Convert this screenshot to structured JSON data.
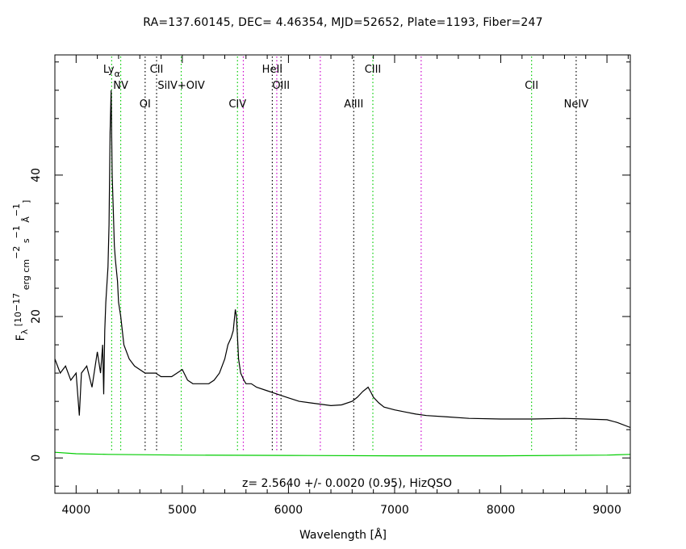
{
  "chart_data": {
    "type": "line",
    "title": "RA=137.60145, DEC= 4.46354, MJD=52652, Plate=1193, Fiber=247",
    "xlabel": "Wavelength [Å]",
    "ylabel_parts": [
      "F",
      "λ",
      " [10",
      "−17",
      " erg cm",
      "−2",
      " s",
      "−1",
      " Å",
      "−1",
      "]"
    ],
    "xlim": [
      3800,
      9220
    ],
    "ylim": [
      -5,
      57
    ],
    "x_ticks": [
      4000,
      5000,
      6000,
      7000,
      8000,
      9000
    ],
    "y_ticks": [
      0,
      20,
      40
    ],
    "annotation": "z= 2.5640 +/- 0.0020 (0.95), HizQSO",
    "colors": {
      "flux": "#000000",
      "error": "#00cc00",
      "emission": "#00cc00",
      "absorption": "#000000",
      "sky": "#cc00cc"
    },
    "series": [
      {
        "role": "flux",
        "x": [
          3800,
          3850,
          3900,
          3950,
          4000,
          4030,
          4050,
          4100,
          4150,
          4200,
          4230,
          4250,
          4260,
          4270,
          4280,
          4300,
          4310,
          4320,
          4330,
          4340,
          4350,
          4360,
          4370,
          4390,
          4400,
          4420,
          4450,
          4500,
          4550,
          4600,
          4650,
          4700,
          4750,
          4800,
          4850,
          4900,
          4950,
          5000,
          5050,
          5100,
          5150,
          5200,
          5250,
          5300,
          5350,
          5400,
          5430,
          5460,
          5480,
          5500,
          5510,
          5520,
          5530,
          5550,
          5580,
          5600,
          5650,
          5700,
          5800,
          5900,
          6000,
          6100,
          6200,
          6300,
          6400,
          6500,
          6600,
          6650,
          6700,
          6750,
          6780,
          6800,
          6850,
          6900,
          7000,
          7100,
          7200,
          7300,
          7500,
          7700,
          8000,
          8300,
          8600,
          8800,
          9000,
          9100,
          9220
        ],
        "y": [
          14,
          12,
          13,
          11,
          12,
          6,
          12,
          13,
          10,
          15,
          12,
          16,
          9,
          18,
          22,
          27,
          33,
          46,
          52,
          40,
          35,
          30,
          28,
          25,
          22,
          20,
          16,
          14,
          13,
          12.5,
          12,
          12,
          12,
          11.5,
          11.5,
          11.5,
          12,
          12.5,
          11,
          10.5,
          10.5,
          10.5,
          10.5,
          11,
          12,
          14,
          16,
          17,
          18,
          21,
          20,
          17,
          14,
          12,
          11,
          10.5,
          10.5,
          10,
          9.5,
          9,
          8.5,
          8,
          7.8,
          7.6,
          7.4,
          7.5,
          8,
          8.6,
          9.4,
          10,
          9.2,
          8.6,
          7.8,
          7.2,
          6.8,
          6.5,
          6.2,
          6,
          5.8,
          5.6,
          5.5,
          5.5,
          5.6,
          5.5,
          5.4,
          5,
          4.3
        ]
      },
      {
        "role": "error",
        "x": [
          3800,
          4000,
          4300,
          5000,
          6000,
          7000,
          8000,
          9000,
          9220
        ],
        "y": [
          0.8,
          0.6,
          0.5,
          0.4,
          0.35,
          0.3,
          0.3,
          0.4,
          0.5
        ]
      }
    ],
    "lines": [
      {
        "label": "Lyα",
        "x": 4335,
        "kind": "emission",
        "row": 0
      },
      {
        "label": "NV",
        "x": 4420,
        "kind": "emission",
        "row": 1
      },
      {
        "label": "OI",
        "x": 4650,
        "kind": "absorption",
        "row": 2
      },
      {
        "label": "CII",
        "x": 4758,
        "kind": "absorption",
        "row": 0
      },
      {
        "label": "SiIV+OIV",
        "x": 4990,
        "kind": "emission",
        "row": 1
      },
      {
        "label": "CIV",
        "x": 5520,
        "kind": "emission",
        "row": 2
      },
      {
        "label": "",
        "x": 5575,
        "kind": "sky",
        "row": 0
      },
      {
        "label": "HeII",
        "x": 5848,
        "kind": "absorption",
        "row": 0
      },
      {
        "label": "",
        "x": 5890,
        "kind": "sky",
        "row": 0
      },
      {
        "label": "OIII",
        "x": 5930,
        "kind": "absorption",
        "row": 1
      },
      {
        "label": "",
        "x": 6300,
        "kind": "sky",
        "row": 0
      },
      {
        "label": "AlIII",
        "x": 6615,
        "kind": "absorption",
        "row": 2
      },
      {
        "label": "CIII",
        "x": 6795,
        "kind": "emission",
        "row": 0
      },
      {
        "label": "",
        "x": 7250,
        "kind": "sky",
        "row": 0
      },
      {
        "label": "CII",
        "x": 8290,
        "kind": "emission",
        "row": 1
      },
      {
        "label": "NeIV",
        "x": 8710,
        "kind": "absorption",
        "row": 2
      }
    ]
  }
}
